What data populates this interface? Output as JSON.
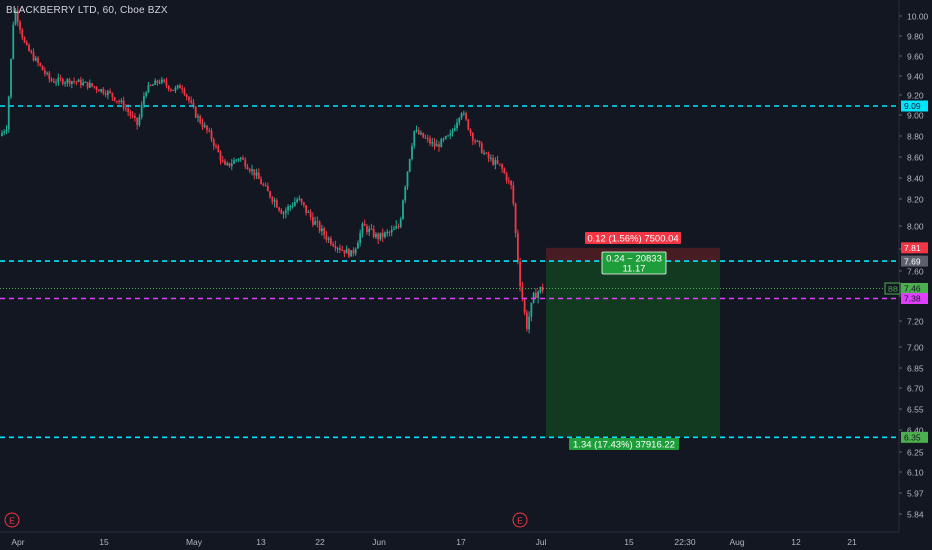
{
  "header": {
    "title": "BLACKBERRY LTD, 60, Cboe BZX"
  },
  "colors": {
    "background": "#131722",
    "text": "#b2b5be",
    "up": "#22ab94",
    "down": "#f23645",
    "cyan_line": "#00e5ff",
    "magenta_line": "#e040fb",
    "green_line": "#4caf50",
    "target_zone": "#123c22",
    "stop_zone": "#4a1e24",
    "stop_badge": "#f23645",
    "target_badge": "#1e9e3a",
    "gray_badge": "#5d606b",
    "event_marker": "#f23645"
  },
  "chart_data": {
    "type": "candlestick",
    "symbol": "BLACKBERRY LTD",
    "interval": "60",
    "exchange": "Cboe BZX",
    "y_axis": {
      "ylim": [
        5.75,
        10.05
      ],
      "ticks": [
        "10.00",
        "9.80",
        "9.60",
        "9.40",
        "9.20",
        "9.00",
        "8.80",
        "8.60",
        "8.40",
        "8.20",
        "8.00",
        "7.80",
        "7.60",
        "7.40",
        "7.20",
        "7.00",
        "6.85",
        "6.70",
        "6.55",
        "6.40",
        "6.25",
        "6.10",
        "5.97",
        "5.84"
      ]
    },
    "x_axis": {
      "ticks": [
        "Apr",
        "15",
        "May",
        "13",
        "22",
        "Jun",
        "17",
        "Jul",
        "15",
        "22:30",
        "Aug",
        "12",
        "21"
      ]
    },
    "price_trend": [
      {
        "t": 0,
        "p": 8.8
      },
      {
        "t": 0.02,
        "p": 8.9
      },
      {
        "t": 0.04,
        "p": 10.1
      },
      {
        "t": 0.07,
        "p": 9.7
      },
      {
        "t": 0.1,
        "p": 9.55
      },
      {
        "t": 0.14,
        "p": 9.35
      },
      {
        "t": 0.2,
        "p": 9.35
      },
      {
        "t": 0.25,
        "p": 9.3
      },
      {
        "t": 0.3,
        "p": 9.22
      },
      {
        "t": 0.34,
        "p": 9.1
      },
      {
        "t": 0.38,
        "p": 8.9
      },
      {
        "t": 0.4,
        "p": 9.25
      },
      {
        "t": 0.44,
        "p": 9.35
      },
      {
        "t": 0.48,
        "p": 9.25
      },
      {
        "t": 0.5,
        "p": 9.3
      },
      {
        "t": 0.54,
        "p": 9.0
      },
      {
        "t": 0.58,
        "p": 8.8
      },
      {
        "t": 0.62,
        "p": 8.5
      },
      {
        "t": 0.66,
        "p": 8.6
      },
      {
        "t": 0.7,
        "p": 8.45
      },
      {
        "t": 0.74,
        "p": 8.25
      },
      {
        "t": 0.78,
        "p": 8.1
      },
      {
        "t": 0.82,
        "p": 8.2
      },
      {
        "t": 0.86,
        "p": 8.05
      },
      {
        "t": 0.9,
        "p": 7.9
      },
      {
        "t": 0.94,
        "p": 7.8
      },
      {
        "t": 0.97,
        "p": 7.75
      },
      {
        "t": 1.0,
        "p": 8.0
      },
      {
        "t": 1.04,
        "p": 7.9
      },
      {
        "t": 1.08,
        "p": 7.95
      },
      {
        "t": 1.1,
        "p": 8.0
      },
      {
        "t": 1.14,
        "p": 8.85
      },
      {
        "t": 1.18,
        "p": 8.75
      },
      {
        "t": 1.2,
        "p": 8.7
      },
      {
        "t": 1.24,
        "p": 8.8
      },
      {
        "t": 1.27,
        "p": 9.05
      },
      {
        "t": 1.3,
        "p": 8.8
      },
      {
        "t": 1.34,
        "p": 8.6
      },
      {
        "t": 1.38,
        "p": 8.5
      },
      {
        "t": 1.41,
        "p": 8.3
      },
      {
        "t": 1.43,
        "p": 7.55
      },
      {
        "t": 1.45,
        "p": 7.15
      },
      {
        "t": 1.47,
        "p": 7.4
      },
      {
        "t": 1.49,
        "p": 7.46
      }
    ],
    "horizontal_lines": [
      {
        "name": "resistance",
        "price": 9.09,
        "style": "dashed",
        "color_key": "cyan_line",
        "label": "9.09"
      },
      {
        "name": "entry",
        "price": 7.69,
        "style": "dashed",
        "color_key": "cyan_line",
        "label": "7.69"
      },
      {
        "name": "target",
        "price": 6.35,
        "style": "dashed",
        "color_key": "cyan_line",
        "label": "6.35"
      },
      {
        "name": "marker",
        "price": 7.38,
        "style": "dashed",
        "color_key": "magenta_line",
        "label": "7.38"
      },
      {
        "name": "last-price",
        "price": 7.46,
        "style": "dotted",
        "color_key": "green_line",
        "label": "7.46"
      }
    ],
    "position": {
      "type": "short",
      "entry": 7.69,
      "stop": 7.81,
      "target": 6.35,
      "stop_label": "0.12 (1.56%) 7500.04",
      "target_label": "1.34 (17.43%) 37916.22",
      "entry_label_line1": "0.24 ~ 20833",
      "entry_label_line2": "11.17"
    },
    "price_badges": [
      {
        "price": 9.09,
        "text": "9.09",
        "color_key": "cyan_line",
        "text_color": "#131722"
      },
      {
        "price": 7.81,
        "text": "7.81",
        "color_key": "stop_badge",
        "text_color": "#ffffff"
      },
      {
        "price": 7.69,
        "text": "7.69",
        "color_key": "gray_badge",
        "text_color": "#ffffff"
      },
      {
        "price": 7.46,
        "text": "7.46",
        "prefix": "BB",
        "color_key": "green_line",
        "text_color": "#131722"
      },
      {
        "price": 7.38,
        "text": "7.38",
        "color_key": "magenta_line",
        "text_color": "#131722"
      },
      {
        "price": 6.35,
        "text": "6.35",
        "color_key": "green_line",
        "text_color": "#131722"
      }
    ],
    "event_markers": [
      {
        "label": "E",
        "position": "start"
      },
      {
        "label": "E",
        "position": "near Jul"
      }
    ],
    "grid": false
  }
}
